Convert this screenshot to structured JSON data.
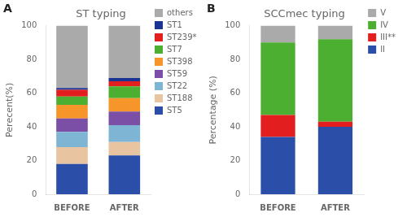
{
  "chart_data": [
    {
      "type": "bar",
      "stacked": true,
      "title": "ST typing",
      "ylabel": "Perecent(%)",
      "annotations": [
        "A"
      ],
      "categories": [
        "BEFORE",
        "AFTER"
      ],
      "series": [
        {
          "name": "ST5",
          "color": "#2b4ea8",
          "values": [
            18,
            23
          ]
        },
        {
          "name": "ST188",
          "color": "#e8c4a0",
          "values": [
            10,
            8
          ]
        },
        {
          "name": "ST22",
          "color": "#7fb5d4",
          "values": [
            9,
            10
          ]
        },
        {
          "name": "ST59",
          "color": "#7b4fa6",
          "values": [
            8,
            8
          ]
        },
        {
          "name": "ST398",
          "color": "#f5952a",
          "values": [
            8,
            8
          ]
        },
        {
          "name": "ST7",
          "color": "#4daf32",
          "values": [
            5,
            7
          ]
        },
        {
          "name": "ST239*",
          "color": "#e31e1e",
          "values": [
            4,
            3
          ]
        },
        {
          "name": "ST1",
          "color": "#1a3494",
          "values": [
            1,
            2
          ]
        },
        {
          "name": "others",
          "color": "#aaaaaa",
          "values": [
            37,
            31
          ]
        }
      ],
      "ylim": [
        0,
        100
      ],
      "yticks": [
        0,
        20,
        40,
        60,
        80,
        100
      ],
      "grid": false,
      "legend": "right"
    },
    {
      "type": "bar",
      "stacked": true,
      "title": "SCCmec typing",
      "ylabel": "Percentage (%)",
      "annotations": [
        "B"
      ],
      "categories": [
        "BEFORE",
        "AFTER"
      ],
      "series": [
        {
          "name": "II",
          "color": "#2b4ea8",
          "values": [
            34,
            40
          ]
        },
        {
          "name": "III**",
          "color": "#e31e1e",
          "values": [
            13,
            3
          ]
        },
        {
          "name": "IV",
          "color": "#4daf32",
          "values": [
            43,
            49
          ]
        },
        {
          "name": "V",
          "color": "#aaaaaa",
          "values": [
            10,
            8
          ]
        }
      ],
      "ylim": [
        0,
        100
      ],
      "yticks": [
        0,
        20,
        40,
        60,
        80,
        100
      ],
      "grid": false,
      "legend": "right"
    }
  ]
}
